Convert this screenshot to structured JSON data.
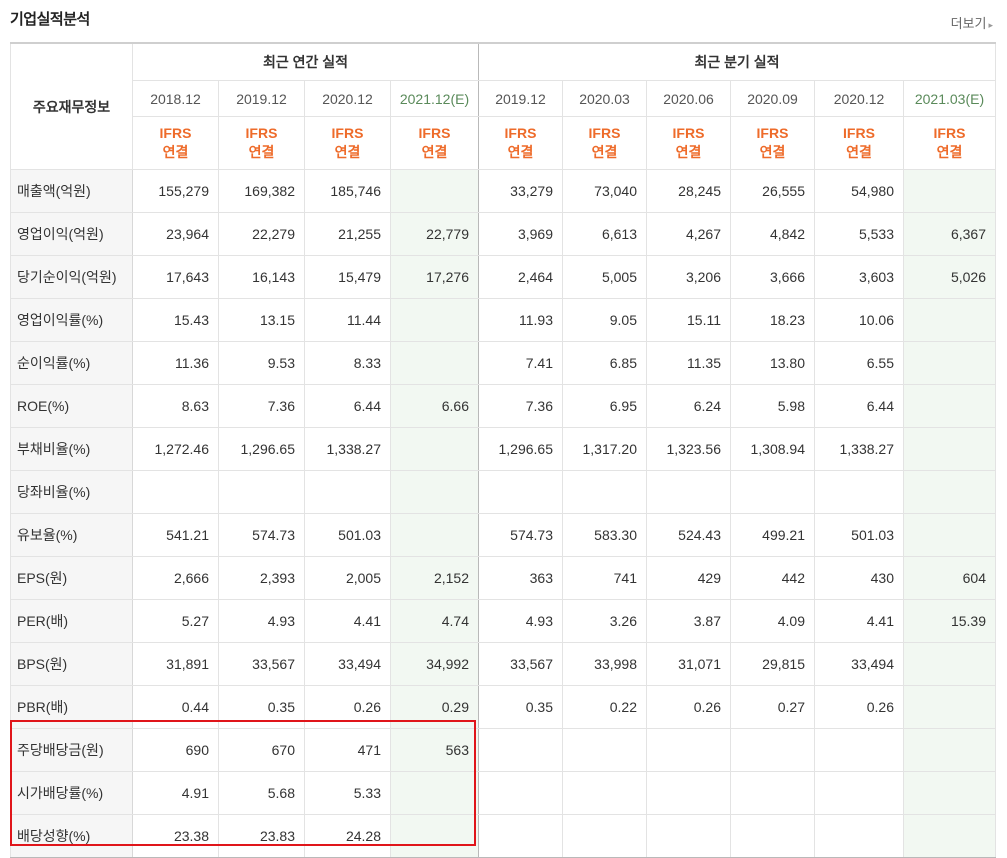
{
  "header": {
    "title": "기업실적분석",
    "more_label": "더보기"
  },
  "table": {
    "corner_label": "주요재무정보",
    "group_annual": "최근 연간 실적",
    "group_quarter": "최근 분기 실적",
    "annual_periods": [
      "2018.12",
      "2019.12",
      "2020.12",
      "2021.12(E)"
    ],
    "quarter_periods": [
      "2019.12",
      "2020.03",
      "2020.06",
      "2020.09",
      "2020.12",
      "2021.03(E)"
    ],
    "basis_line1": "IFRS",
    "basis_line2": "연결",
    "rows": [
      {
        "label": "매출액(억원)",
        "annual": [
          "155,279",
          "169,382",
          "185,746",
          ""
        ],
        "quarter": [
          "33,279",
          "73,040",
          "28,245",
          "26,555",
          "54,980",
          ""
        ]
      },
      {
        "label": "영업이익(억원)",
        "annual": [
          "23,964",
          "22,279",
          "21,255",
          "22,779"
        ],
        "quarter": [
          "3,969",
          "6,613",
          "4,267",
          "4,842",
          "5,533",
          "6,367"
        ]
      },
      {
        "label": "당기순이익(억원)",
        "annual": [
          "17,643",
          "16,143",
          "15,479",
          "17,276"
        ],
        "quarter": [
          "2,464",
          "5,005",
          "3,206",
          "3,666",
          "3,603",
          "5,026"
        ]
      },
      {
        "label": "영업이익률(%)",
        "annual": [
          "15.43",
          "13.15",
          "11.44",
          ""
        ],
        "quarter": [
          "11.93",
          "9.05",
          "15.11",
          "18.23",
          "10.06",
          ""
        ]
      },
      {
        "label": "순이익률(%)",
        "annual": [
          "11.36",
          "9.53",
          "8.33",
          ""
        ],
        "quarter": [
          "7.41",
          "6.85",
          "11.35",
          "13.80",
          "6.55",
          ""
        ]
      },
      {
        "label": "ROE(%)",
        "annual": [
          "8.63",
          "7.36",
          "6.44",
          "6.66"
        ],
        "quarter": [
          "7.36",
          "6.95",
          "6.24",
          "5.98",
          "6.44",
          ""
        ]
      },
      {
        "label": "부채비율(%)",
        "annual": [
          "1,272.46",
          "1,296.65",
          "1,338.27",
          ""
        ],
        "quarter": [
          "1,296.65",
          "1,317.20",
          "1,323.56",
          "1,308.94",
          "1,338.27",
          ""
        ]
      },
      {
        "label": "당좌비율(%)",
        "annual": [
          "",
          "",
          "",
          ""
        ],
        "quarter": [
          "",
          "",
          "",
          "",
          "",
          ""
        ]
      },
      {
        "label": "유보율(%)",
        "annual": [
          "541.21",
          "574.73",
          "501.03",
          ""
        ],
        "quarter": [
          "574.73",
          "583.30",
          "524.43",
          "499.21",
          "501.03",
          ""
        ]
      },
      {
        "label": "EPS(원)",
        "annual": [
          "2,666",
          "2,393",
          "2,005",
          "2,152"
        ],
        "quarter": [
          "363",
          "741",
          "429",
          "442",
          "430",
          "604"
        ]
      },
      {
        "label": "PER(배)",
        "annual": [
          "5.27",
          "4.93",
          "4.41",
          "4.74"
        ],
        "quarter": [
          "4.93",
          "3.26",
          "3.87",
          "4.09",
          "4.41",
          "15.39"
        ]
      },
      {
        "label": "BPS(원)",
        "annual": [
          "31,891",
          "33,567",
          "33,494",
          "34,992"
        ],
        "quarter": [
          "33,567",
          "33,998",
          "31,071",
          "29,815",
          "33,494",
          ""
        ]
      },
      {
        "label": "PBR(배)",
        "annual": [
          "0.44",
          "0.35",
          "0.26",
          "0.29"
        ],
        "quarter": [
          "0.35",
          "0.22",
          "0.26",
          "0.27",
          "0.26",
          ""
        ]
      },
      {
        "label": "주당배당금(원)",
        "annual": [
          "690",
          "670",
          "471",
          "563"
        ],
        "quarter": [
          "",
          "",
          "",
          "",
          "",
          ""
        ]
      },
      {
        "label": "시가배당률(%)",
        "annual": [
          "4.91",
          "5.68",
          "5.33",
          ""
        ],
        "quarter": [
          "",
          "",
          "",
          "",
          "",
          ""
        ]
      },
      {
        "label": "배당성향(%)",
        "annual": [
          "23.38",
          "23.83",
          "24.28",
          ""
        ],
        "quarter": [
          "",
          "",
          "",
          "",
          "",
          ""
        ]
      }
    ]
  },
  "colors": {
    "estimate_bg": "#f2f8f2",
    "ifrs_text": "#ee6b2a",
    "highlight_border": "#e0151a"
  }
}
